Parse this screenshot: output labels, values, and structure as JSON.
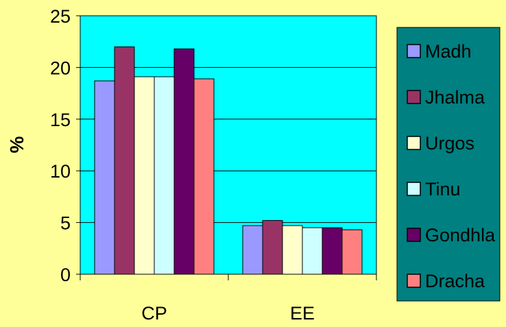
{
  "colors": {
    "page_background": "#ffff99",
    "plot_background": "#00ffff",
    "legend_background": "#008080",
    "gridline": "#000000"
  },
  "chart_data": {
    "type": "bar",
    "categories": [
      "CP",
      "EE"
    ],
    "ylabel": "%",
    "ylim": [
      0,
      25
    ],
    "yticks": [
      0,
      5,
      10,
      15,
      20,
      25
    ],
    "grid": true,
    "legend_position": "right",
    "series": [
      {
        "name": "Madh",
        "color": "#9999ff",
        "values": [
          18.7,
          4.7
        ]
      },
      {
        "name": "Jhalma",
        "color": "#993366",
        "values": [
          22.0,
          5.2
        ]
      },
      {
        "name": "Urgos",
        "color": "#ffffcc",
        "values": [
          19.1,
          4.7
        ]
      },
      {
        "name": "Tinu",
        "color": "#ccffff",
        "values": [
          19.1,
          4.5
        ]
      },
      {
        "name": "Gondhla",
        "color": "#660066",
        "values": [
          21.8,
          4.5
        ]
      },
      {
        "name": "Dracha",
        "color": "#ff8080",
        "values": [
          18.9,
          4.3
        ]
      }
    ]
  }
}
